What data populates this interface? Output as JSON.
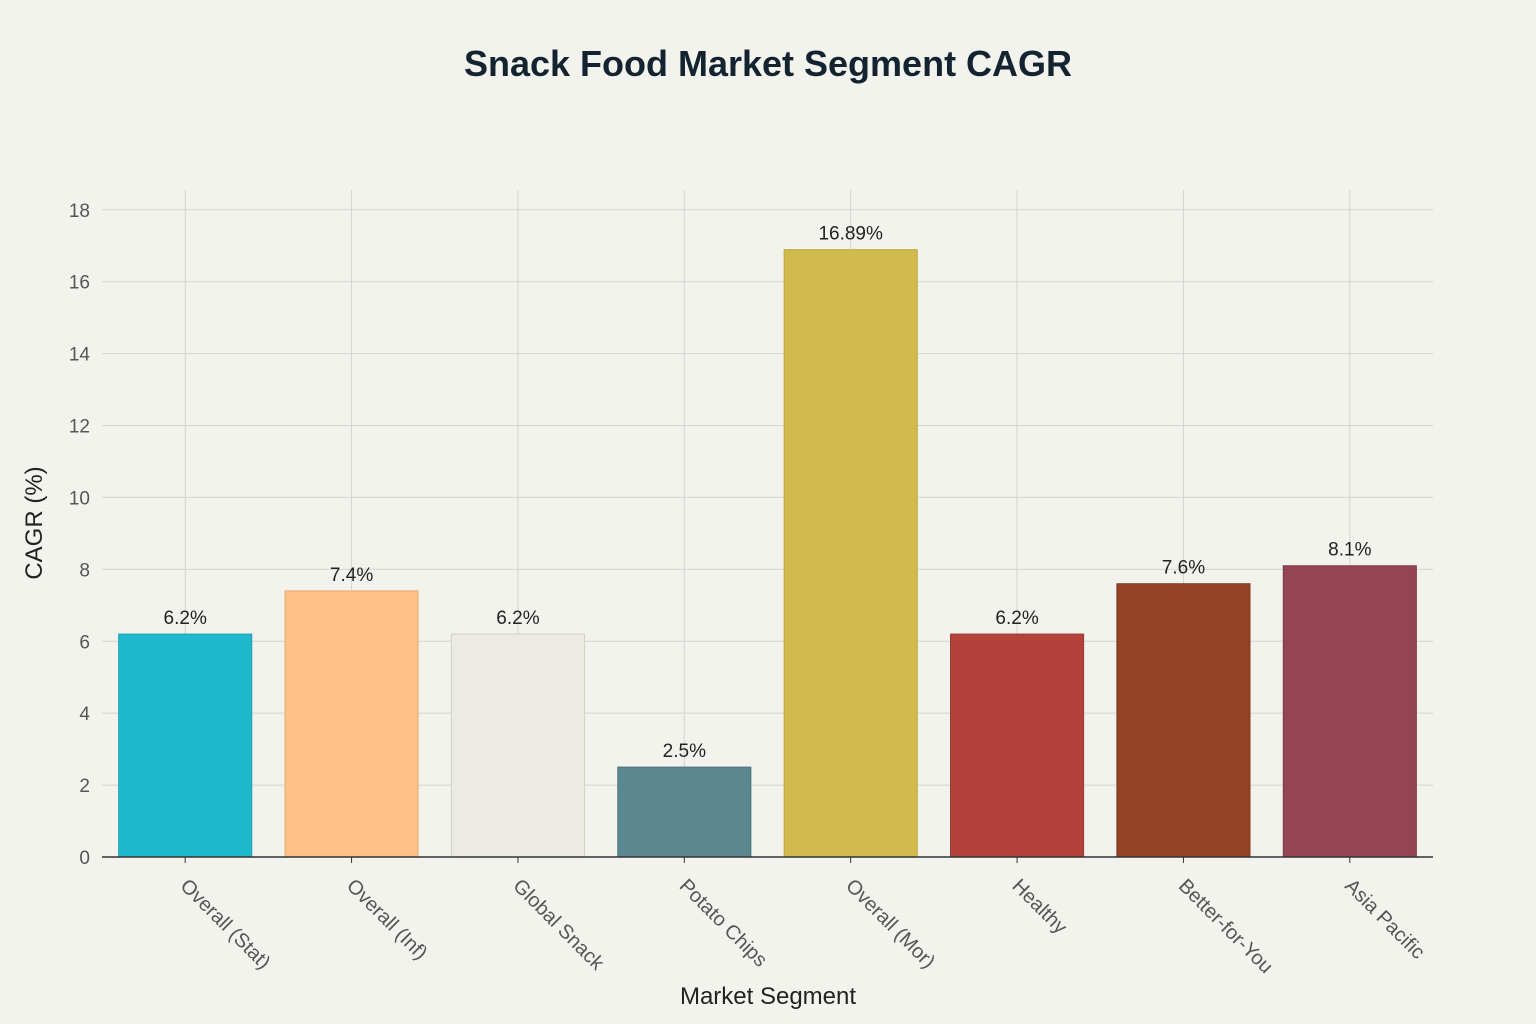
{
  "chart_data": {
    "type": "bar",
    "title": "Snack Food Market Segment CAGR",
    "xlabel": "Market Segment",
    "ylabel": "CAGR (%)",
    "ylim": [
      0,
      18
    ],
    "yticks": [
      0,
      2,
      4,
      6,
      8,
      10,
      12,
      14,
      16,
      18
    ],
    "grid": true,
    "legend": "none",
    "categories": [
      "Overall (Stat)",
      "Overall (Inf)",
      "Global Snack",
      "Potato Chips",
      "Overall (Mor)",
      "Healthy",
      "Better-for-You",
      "Asia Pacific"
    ],
    "values": [
      6.2,
      7.4,
      6.2,
      2.5,
      16.89,
      6.2,
      7.6,
      8.1
    ],
    "data_labels": [
      "6.2%",
      "7.4%",
      "6.2%",
      "2.5%",
      "16.89%",
      "6.2%",
      "7.6%",
      "8.1%"
    ],
    "colors": [
      "#1fb8cd",
      "#ffc185",
      "#eceb d5",
      "#5d878f",
      "#d2ba4c",
      "#b4413c",
      "#964325",
      "#944454"
    ]
  }
}
